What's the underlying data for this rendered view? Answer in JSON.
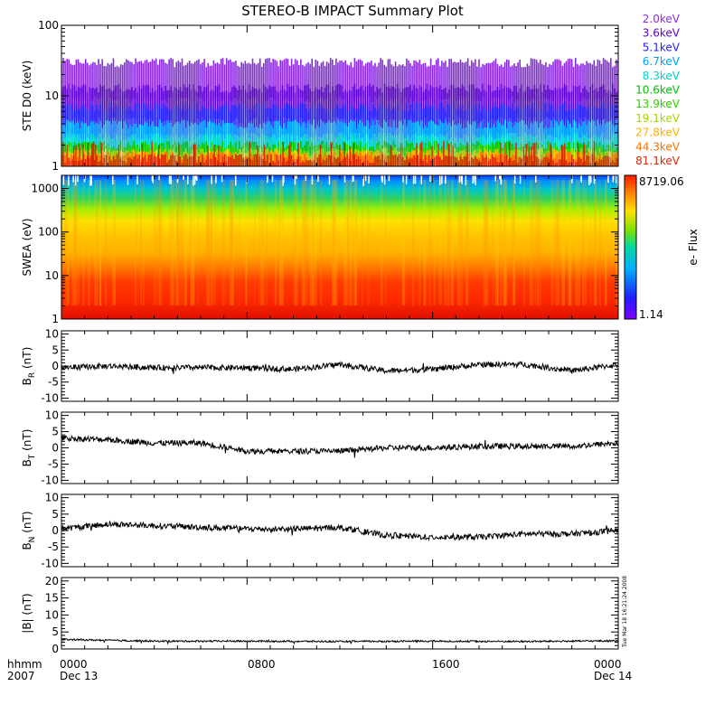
{
  "title": "STEREO-B IMPACT Summary Plot",
  "footer": {
    "fmt_label": "hhmm",
    "year": "2007",
    "ticks": [
      "0000",
      "0800",
      "1600",
      "0000"
    ],
    "start_date": "Dec 13",
    "end_date": "Dec 14"
  },
  "timestamp": "Tue Mar 18 16:21:24 2008",
  "colors": {
    "energy": [
      "#8a2be2",
      "#5a00d0",
      "#1f1fff",
      "#00a0ff",
      "#00d2c8",
      "#00c000",
      "#30d000",
      "#a6d400",
      "#ffb000",
      "#ff7000",
      "#d82800"
    ]
  },
  "chart_data": [
    {
      "type": "line",
      "id": "ste",
      "ylabel": "STE D0 (keV)",
      "yscale": "log",
      "ylim": [
        1,
        100
      ],
      "yticks": [
        "1",
        "10",
        "100"
      ],
      "x_range_hours": [
        0,
        24
      ],
      "series": [
        {
          "name": "2.0keV",
          "level_min": 10,
          "level_max": 30
        },
        {
          "name": "3.6keV",
          "level_min": 5,
          "level_max": 13
        },
        {
          "name": "5.1keV",
          "level_min": 3,
          "level_max": 7
        },
        {
          "name": "6.7keV",
          "level_min": 2,
          "level_max": 4
        },
        {
          "name": "8.3keV",
          "level_min": 1.6,
          "level_max": 2.6
        },
        {
          "name": "10.6keV",
          "level_min": 1.2,
          "level_max": 2
        },
        {
          "name": "13.9keV",
          "level_min": 1.1,
          "level_max": 1.8
        },
        {
          "name": "19.1keV",
          "level_min": 1,
          "level_max": 1.6
        },
        {
          "name": "27.8keV",
          "level_min": 1,
          "level_max": 1.5
        },
        {
          "name": "44.3keV",
          "level_min": 1,
          "level_max": 1.4
        },
        {
          "name": "81.1keV",
          "level_min": 1,
          "level_max": 1.3
        }
      ]
    },
    {
      "type": "heatmap",
      "id": "swea",
      "ylabel": "SWEA (eV)",
      "yscale": "log",
      "ylim": [
        1,
        2000
      ],
      "yticks": [
        "1",
        "10",
        "100",
        "1000"
      ],
      "colorbar": {
        "max": "8719.06",
        "min": "1.14",
        "label": "e- Flux"
      }
    },
    {
      "type": "line",
      "id": "br",
      "ylabel": "B_R (nT)",
      "ylim": [
        -11,
        11
      ],
      "yticks": [
        "-10",
        "-5",
        "0",
        "5",
        "10"
      ],
      "knots_x_hours": [
        0,
        2,
        4,
        6,
        8,
        10,
        12,
        14,
        16,
        18,
        20,
        22,
        24
      ],
      "knots_y": [
        -0.5,
        0,
        -0.5,
        -0.5,
        -0.5,
        -1,
        0.5,
        -1.5,
        -1,
        0.5,
        0.5,
        -1.5,
        0.5
      ]
    },
    {
      "type": "line",
      "id": "bt",
      "ylabel": "B_T (nT)",
      "ylim": [
        -11,
        11
      ],
      "yticks": [
        "-10",
        "-5",
        "0",
        "5",
        "10"
      ],
      "knots_x_hours": [
        0,
        2,
        4,
        6,
        8,
        10,
        12,
        14,
        16,
        18,
        20,
        22,
        24
      ],
      "knots_y": [
        3,
        2.5,
        1.5,
        1.5,
        -1,
        -1,
        -1,
        0,
        0,
        0.5,
        0.5,
        0.5,
        1.5
      ]
    },
    {
      "type": "line",
      "id": "bn",
      "ylabel": "B_N (nT)",
      "ylim": [
        -11,
        11
      ],
      "yticks": [
        "-10",
        "-5",
        "0",
        "5",
        "10"
      ],
      "knots_x_hours": [
        0,
        2,
        4,
        6,
        8,
        10,
        12,
        14,
        16,
        18,
        20,
        22,
        24
      ],
      "knots_y": [
        0.5,
        2,
        1.5,
        1,
        0.5,
        0.5,
        1,
        -1.5,
        -2,
        -2,
        -1,
        -1,
        0
      ]
    },
    {
      "type": "line",
      "id": "bmag",
      "ylabel": "|B| (nT)",
      "ylim": [
        0,
        21
      ],
      "yticks": [
        "0",
        "5",
        "10",
        "15",
        "20"
      ],
      "knots_x_hours": [
        0,
        4,
        8,
        12,
        16,
        20,
        24
      ],
      "knots_y": [
        2.8,
        2.3,
        2.3,
        2.2,
        2.3,
        2.2,
        2.4
      ]
    }
  ]
}
